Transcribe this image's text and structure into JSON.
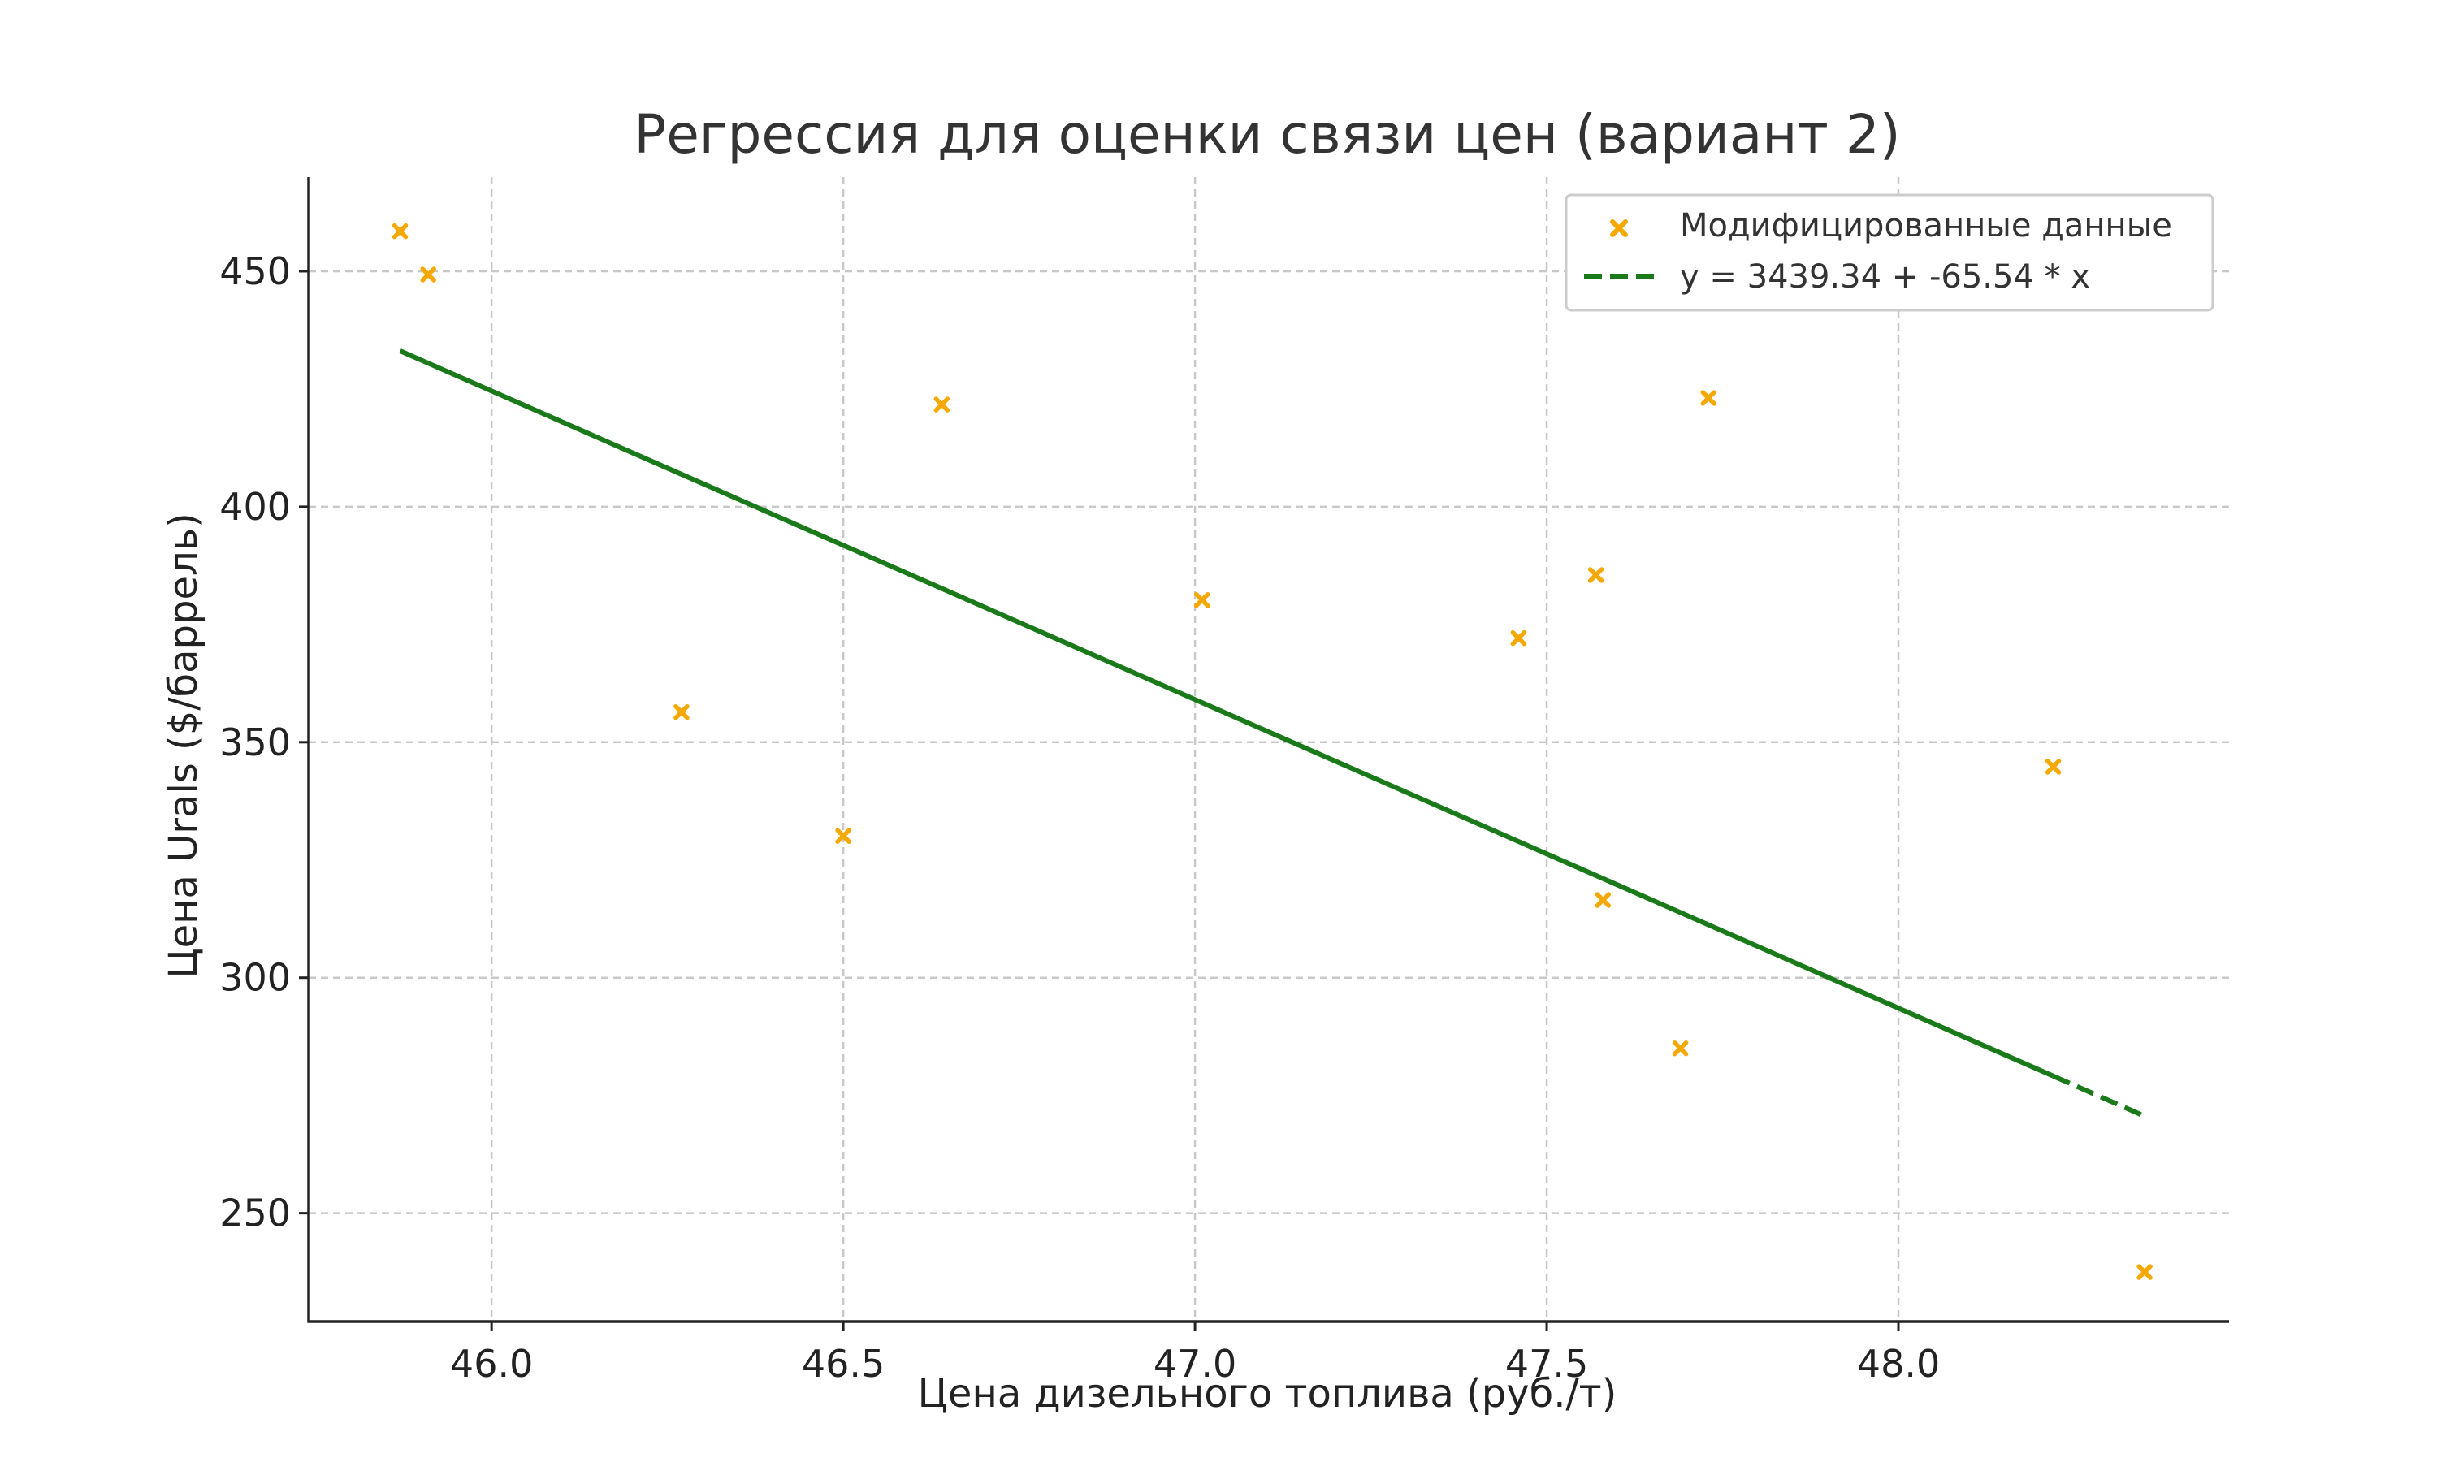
{
  "chart_data": {
    "type": "scatter",
    "title": "Регрессия для оценки связи цен (вариант 2)",
    "xlabel": "Цена дизельного топлива (руб./т)",
    "ylabel": "Цена Urals ($/баррель)",
    "xlim": [
      45.74,
      48.47
    ],
    "ylim": [
      227,
      470
    ],
    "xticks": [
      46.0,
      46.5,
      47.0,
      47.5,
      48.0
    ],
    "xtick_labels": [
      "46.0",
      "46.5",
      "47.0",
      "47.5",
      "48.0"
    ],
    "yticks": [
      250,
      300,
      350,
      400,
      450
    ],
    "ytick_labels": [
      "250",
      "300",
      "350",
      "400",
      "450"
    ],
    "grid": true,
    "legend_position": "top-right",
    "series": [
      {
        "name": "Модифицированные данные",
        "type": "scatter",
        "marker": "x",
        "color": "#f5a800",
        "points": [
          [
            45.87,
            458.5
          ],
          [
            45.91,
            449.3
          ],
          [
            46.27,
            356.4
          ],
          [
            46.5,
            330.1
          ],
          [
            46.64,
            421.7
          ],
          [
            47.01,
            380.2
          ],
          [
            47.46,
            372.1
          ],
          [
            47.57,
            385.5
          ],
          [
            47.58,
            316.5
          ],
          [
            47.69,
            285.0
          ],
          [
            47.73,
            423.1
          ],
          [
            48.22,
            344.8
          ],
          [
            48.35,
            237.5
          ]
        ]
      },
      {
        "name": "y = 3439.34 + -65.54 * x",
        "type": "line",
        "style": "dashed",
        "color": "#1a7a1a",
        "x": [
          45.87,
          48.35
        ],
        "y": [
          433.1,
          270.6
        ]
      }
    ]
  }
}
